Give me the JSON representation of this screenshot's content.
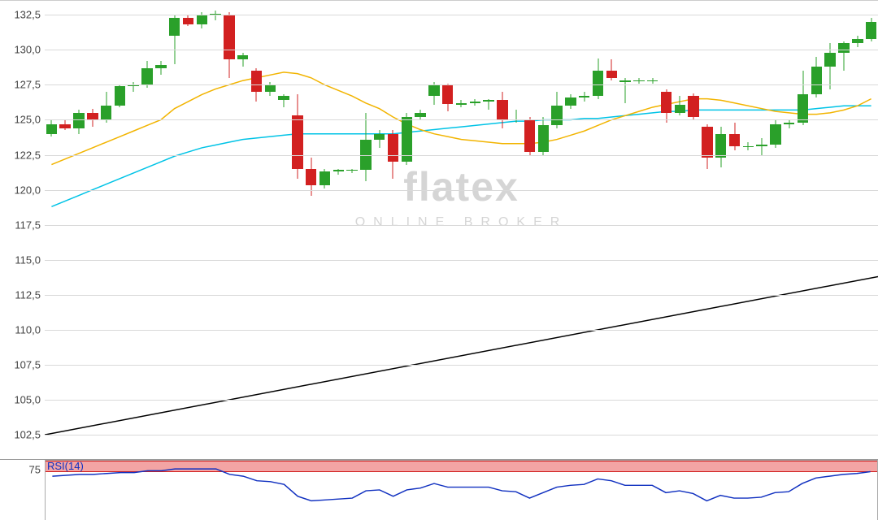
{
  "main_chart": {
    "type": "candlestick",
    "y_axis": {
      "min": 101.0,
      "max": 133.5,
      "ticks": [
        102.5,
        105.0,
        107.5,
        110.0,
        112.5,
        115.0,
        117.5,
        120.0,
        122.5,
        125.0,
        127.5,
        130.0,
        132.5
      ],
      "label_format_decimal": ",",
      "label_fontsize": 13,
      "label_color": "#444444"
    },
    "grid_color": "#d9d9d9",
    "background_color": "#ffffff",
    "candle_up_color": "#2aa02a",
    "candle_down_color": "#d22020",
    "candles": [
      {
        "o": 124.0,
        "h": 125.0,
        "l": 123.8,
        "c": 124.7
      },
      {
        "o": 124.7,
        "h": 125.0,
        "l": 124.3,
        "c": 124.4
      },
      {
        "o": 124.4,
        "h": 125.7,
        "l": 124.0,
        "c": 125.5
      },
      {
        "o": 125.5,
        "h": 125.8,
        "l": 124.5,
        "c": 125.0
      },
      {
        "o": 125.0,
        "h": 127.0,
        "l": 124.8,
        "c": 126.0
      },
      {
        "o": 126.0,
        "h": 127.5,
        "l": 125.9,
        "c": 127.4
      },
      {
        "o": 127.4,
        "h": 127.7,
        "l": 127.0,
        "c": 127.5
      },
      {
        "o": 127.5,
        "h": 129.2,
        "l": 127.3,
        "c": 128.7
      },
      {
        "o": 128.7,
        "h": 129.2,
        "l": 128.2,
        "c": 128.9
      },
      {
        "o": 131.0,
        "h": 132.5,
        "l": 129.0,
        "c": 132.3
      },
      {
        "o": 132.3,
        "h": 132.5,
        "l": 131.7,
        "c": 131.8
      },
      {
        "o": 131.8,
        "h": 132.7,
        "l": 131.5,
        "c": 132.5
      },
      {
        "o": 132.5,
        "h": 132.8,
        "l": 132.1,
        "c": 132.6
      },
      {
        "o": 132.5,
        "h": 132.7,
        "l": 128.0,
        "c": 129.3
      },
      {
        "o": 129.3,
        "h": 129.8,
        "l": 128.8,
        "c": 129.6
      },
      {
        "o": 128.5,
        "h": 128.7,
        "l": 126.3,
        "c": 127.0
      },
      {
        "o": 127.0,
        "h": 127.7,
        "l": 126.7,
        "c": 127.5
      },
      {
        "o": 126.4,
        "h": 126.8,
        "l": 125.9,
        "c": 126.7
      },
      {
        "o": 125.3,
        "h": 126.8,
        "l": 120.8,
        "c": 121.5
      },
      {
        "o": 121.5,
        "h": 122.3,
        "l": 119.6,
        "c": 120.3
      },
      {
        "o": 120.3,
        "h": 121.5,
        "l": 120.1,
        "c": 121.3
      },
      {
        "o": 121.3,
        "h": 121.5,
        "l": 121.1,
        "c": 121.4
      },
      {
        "o": 121.4,
        "h": 121.5,
        "l": 121.2,
        "c": 121.4
      },
      {
        "o": 121.4,
        "h": 125.5,
        "l": 120.6,
        "c": 123.6
      },
      {
        "o": 123.6,
        "h": 124.3,
        "l": 123.0,
        "c": 124.0
      },
      {
        "o": 124.0,
        "h": 124.3,
        "l": 120.8,
        "c": 122.0
      },
      {
        "o": 122.0,
        "h": 125.5,
        "l": 121.8,
        "c": 125.2
      },
      {
        "o": 125.2,
        "h": 125.7,
        "l": 125.0,
        "c": 125.5
      },
      {
        "o": 126.7,
        "h": 127.7,
        "l": 126.1,
        "c": 127.5
      },
      {
        "o": 127.5,
        "h": 127.6,
        "l": 125.6,
        "c": 126.1
      },
      {
        "o": 126.1,
        "h": 126.4,
        "l": 125.9,
        "c": 126.2
      },
      {
        "o": 126.2,
        "h": 126.5,
        "l": 126.0,
        "c": 126.3
      },
      {
        "o": 126.3,
        "h": 126.5,
        "l": 125.7,
        "c": 126.4
      },
      {
        "o": 126.4,
        "h": 127.0,
        "l": 124.4,
        "c": 125.0
      },
      {
        "o": 125.0,
        "h": 125.7,
        "l": 124.8,
        "c": 125.0
      },
      {
        "o": 125.0,
        "h": 125.2,
        "l": 122.4,
        "c": 122.7
      },
      {
        "o": 122.7,
        "h": 125.2,
        "l": 122.5,
        "c": 124.6
      },
      {
        "o": 124.6,
        "h": 127.0,
        "l": 124.4,
        "c": 126.0
      },
      {
        "o": 126.0,
        "h": 126.8,
        "l": 125.8,
        "c": 126.6
      },
      {
        "o": 126.6,
        "h": 127.0,
        "l": 126.3,
        "c": 126.7
      },
      {
        "o": 126.7,
        "h": 129.4,
        "l": 126.5,
        "c": 128.5
      },
      {
        "o": 128.5,
        "h": 129.3,
        "l": 127.8,
        "c": 128.0
      },
      {
        "o": 127.7,
        "h": 128.0,
        "l": 126.2,
        "c": 127.8
      },
      {
        "o": 127.8,
        "h": 128.0,
        "l": 127.6,
        "c": 127.8
      },
      {
        "o": 127.8,
        "h": 128.0,
        "l": 127.6,
        "c": 127.8
      },
      {
        "o": 127.0,
        "h": 127.2,
        "l": 124.8,
        "c": 125.5
      },
      {
        "o": 125.5,
        "h": 126.7,
        "l": 125.3,
        "c": 126.1
      },
      {
        "o": 126.7,
        "h": 126.9,
        "l": 125.0,
        "c": 125.2
      },
      {
        "o": 124.5,
        "h": 124.7,
        "l": 121.5,
        "c": 122.3
      },
      {
        "o": 122.3,
        "h": 124.5,
        "l": 121.6,
        "c": 124.0
      },
      {
        "o": 124.0,
        "h": 124.8,
        "l": 122.8,
        "c": 123.1
      },
      {
        "o": 123.1,
        "h": 123.4,
        "l": 122.8,
        "c": 123.1
      },
      {
        "o": 123.1,
        "h": 123.7,
        "l": 122.5,
        "c": 123.2
      },
      {
        "o": 123.2,
        "h": 125.0,
        "l": 123.0,
        "c": 124.7
      },
      {
        "o": 124.7,
        "h": 125.0,
        "l": 124.4,
        "c": 124.8
      },
      {
        "o": 124.8,
        "h": 128.5,
        "l": 124.6,
        "c": 126.8
      },
      {
        "o": 126.8,
        "h": 129.5,
        "l": 126.6,
        "c": 128.8
      },
      {
        "o": 128.8,
        "h": 130.5,
        "l": 127.2,
        "c": 129.8
      },
      {
        "o": 129.8,
        "h": 130.6,
        "l": 128.5,
        "c": 130.5
      },
      {
        "o": 130.5,
        "h": 131.0,
        "l": 130.2,
        "c": 130.8
      },
      {
        "o": 130.8,
        "h": 132.3,
        "l": 130.6,
        "c": 132.0
      }
    ],
    "ma_fast": {
      "color": "#f2b400",
      "width": 1.5,
      "values": [
        121.8,
        122.2,
        122.6,
        123.0,
        123.4,
        123.8,
        124.2,
        124.6,
        125.0,
        125.8,
        126.3,
        126.8,
        127.2,
        127.5,
        127.8,
        128.0,
        128.2,
        128.4,
        128.3,
        128.0,
        127.5,
        127.1,
        126.7,
        126.2,
        125.8,
        125.2,
        124.7,
        124.3,
        124.0,
        123.8,
        123.6,
        123.5,
        123.4,
        123.3,
        123.3,
        123.3,
        123.4,
        123.6,
        123.9,
        124.2,
        124.6,
        125.0,
        125.3,
        125.6,
        125.9,
        126.1,
        126.3,
        126.5,
        126.5,
        126.4,
        126.2,
        126.0,
        125.8,
        125.6,
        125.5,
        125.4,
        125.4,
        125.5,
        125.7,
        126.0,
        126.5
      ]
    },
    "ma_slow": {
      "color": "#00c3e6",
      "width": 1.5,
      "values": [
        118.8,
        119.2,
        119.6,
        120.0,
        120.4,
        120.8,
        121.2,
        121.6,
        122.0,
        122.4,
        122.7,
        123.0,
        123.2,
        123.4,
        123.6,
        123.7,
        123.8,
        123.9,
        124.0,
        124.0,
        124.0,
        124.0,
        124.0,
        124.0,
        124.0,
        124.0,
        124.1,
        124.2,
        124.3,
        124.4,
        124.5,
        124.6,
        124.7,
        124.8,
        124.9,
        124.9,
        125.0,
        125.0,
        125.0,
        125.1,
        125.1,
        125.2,
        125.3,
        125.4,
        125.5,
        125.6,
        125.6,
        125.7,
        125.7,
        125.7,
        125.7,
        125.7,
        125.7,
        125.7,
        125.7,
        125.7,
        125.8,
        125.9,
        126.0,
        126.0,
        126.0
      ]
    },
    "trend_line": {
      "color": "#000000",
      "width": 1.5,
      "y_start": 102.5,
      "y_end": 113.8
    },
    "watermark": {
      "logo_text": "flatex",
      "tagline_text": "ONLINE BROKER",
      "logo_color": "#d5d5d5",
      "logo_fontsize": 50,
      "tagline_fontsize": 16,
      "tagline_letterspacing": 10
    }
  },
  "rsi_panel": {
    "type": "line",
    "label": "RSI(14)",
    "label_color": "#1030c0",
    "label_fontsize": 13,
    "y_axis": {
      "min": 20,
      "max": 85,
      "ticks": [
        75
      ]
    },
    "overbought_band": {
      "from": 75,
      "to": 85,
      "fill": "#f3a4a4",
      "border": "#d22020"
    },
    "line_color": "#1030c0",
    "line_width": 1.5,
    "values": [
      68,
      69,
      70,
      70,
      71,
      72,
      72,
      74,
      74,
      76,
      76,
      76,
      76,
      70,
      68,
      63,
      62,
      59,
      46,
      41,
      42,
      43,
      44,
      52,
      53,
      46,
      53,
      55,
      60,
      56,
      56,
      56,
      56,
      52,
      51,
      44,
      50,
      56,
      58,
      59,
      65,
      63,
      58,
      58,
      58,
      50,
      52,
      49,
      41,
      47,
      44,
      44,
      45,
      50,
      51,
      60,
      66,
      68,
      70,
      71,
      73
    ]
  }
}
